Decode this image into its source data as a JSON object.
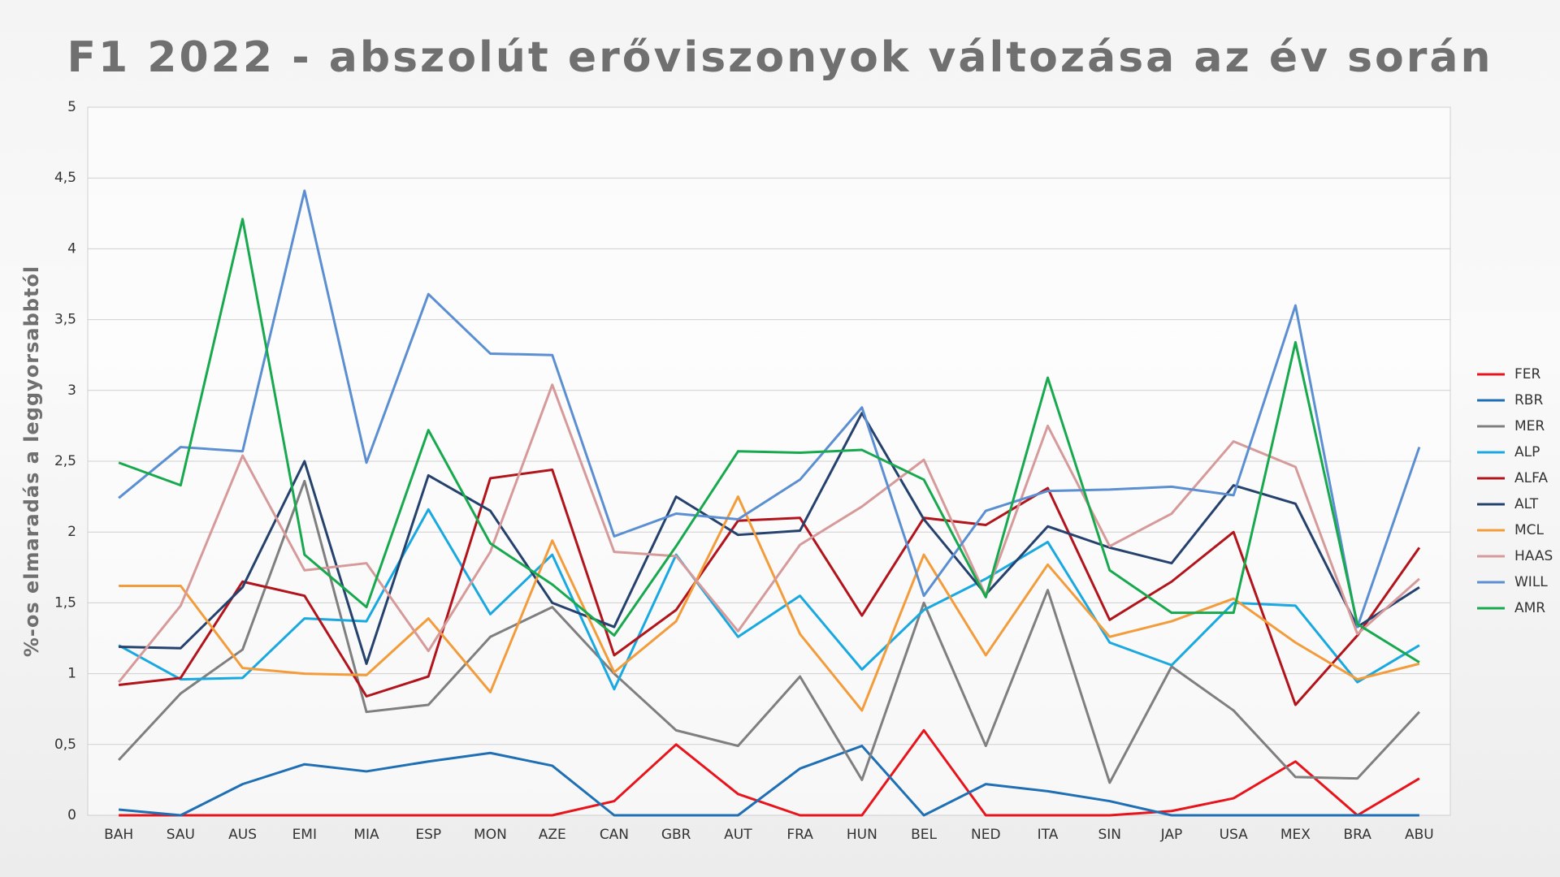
{
  "chart_data": {
    "type": "line",
    "title": "F1 2022 - abszolút  erőviszonyok  változása az év  során",
    "y_label": "%-os  elmaradás a leggyorsabbtól",
    "categories": [
      "BAH",
      "SAU",
      "AUS",
      "EMI",
      "MIA",
      "ESP",
      "MON",
      "AZE",
      "CAN",
      "GBR",
      "AUT",
      "FRA",
      "HUN",
      "BEL",
      "NED",
      "ITA",
      "SIN",
      "JAP",
      "USA",
      "MEX",
      "BRA",
      "ABU"
    ],
    "ylim": [
      0,
      5
    ],
    "yticks": [
      0,
      {
        "value": 0.5,
        "label": "0,5"
      },
      1,
      {
        "value": 1.5,
        "label": "1,5"
      },
      2,
      {
        "value": 2.5,
        "label": "2,5"
      },
      3,
      {
        "value": 3.5,
        "label": "3,5"
      },
      4,
      {
        "value": 4.5,
        "label": "4,5"
      },
      5
    ],
    "grid": true,
    "legend": "right",
    "series": [
      {
        "name": "FER",
        "color": "#e8141b",
        "values": [
          0,
          0,
          0,
          0,
          0,
          0,
          0,
          0,
          0.1,
          0.5,
          0.15,
          0,
          0,
          0.6,
          0,
          0,
          0,
          0.03,
          0.12,
          0.38,
          0,
          0.26
        ]
      },
      {
        "name": "RBR",
        "color": "#1f6fb5",
        "values": [
          0.04,
          0,
          0.22,
          0.36,
          0.31,
          0.38,
          0.44,
          0.35,
          0,
          0,
          0,
          0.33,
          0.49,
          0,
          0.22,
          0.17,
          0.1,
          0,
          0,
          0,
          0,
          0
        ]
      },
      {
        "name": "MER",
        "color": "#7f7f7f",
        "values": [
          0.39,
          0.86,
          1.17,
          2.36,
          0.73,
          0.78,
          1.26,
          1.47,
          1.0,
          0.6,
          0.49,
          0.98,
          0.25,
          1.5,
          0.49,
          1.59,
          0.23,
          1.05,
          0.74,
          0.27,
          0.26,
          0.73
        ]
      },
      {
        "name": "ALP",
        "color": "#19a9e0",
        "values": [
          1.2,
          0.96,
          0.97,
          1.39,
          1.37,
          2.16,
          1.42,
          1.84,
          0.89,
          1.84,
          1.26,
          1.55,
          1.03,
          1.45,
          1.67,
          1.93,
          1.22,
          1.06,
          1.5,
          1.48,
          0.94,
          1.2
        ]
      },
      {
        "name": "ALFA",
        "color": "#b2141c",
        "values": [
          0.92,
          0.97,
          1.65,
          1.55,
          0.84,
          0.98,
          2.38,
          2.44,
          1.13,
          1.45,
          2.08,
          2.1,
          1.41,
          2.1,
          2.05,
          2.31,
          1.38,
          1.65,
          2.0,
          0.78,
          1.27,
          1.89
        ]
      },
      {
        "name": "ALT",
        "color": "#25416e",
        "values": [
          1.19,
          1.18,
          1.61,
          2.5,
          1.07,
          2.4,
          2.15,
          1.5,
          1.33,
          2.25,
          1.98,
          2.01,
          2.84,
          2.09,
          1.56,
          2.04,
          1.89,
          1.78,
          2.33,
          2.2,
          1.33,
          1.61
        ]
      },
      {
        "name": "MCL",
        "color": "#f39c3c",
        "values": [
          1.62,
          1.62,
          1.04,
          1.0,
          0.99,
          1.39,
          0.87,
          1.94,
          1.01,
          1.37,
          2.25,
          1.28,
          0.74,
          1.84,
          1.13,
          1.77,
          1.26,
          1.37,
          1.53,
          1.22,
          0.96,
          1.07
        ]
      },
      {
        "name": "HAAS",
        "color": "#d69a9a",
        "values": [
          0.94,
          1.48,
          2.54,
          1.73,
          1.78,
          1.16,
          1.86,
          3.04,
          1.86,
          1.83,
          1.3,
          1.91,
          2.18,
          2.51,
          1.55,
          2.75,
          1.9,
          2.13,
          2.64,
          2.46,
          1.28,
          1.67
        ]
      },
      {
        "name": "WILL",
        "color": "#5b8fd1",
        "values": [
          2.24,
          2.6,
          2.57,
          4.41,
          2.49,
          3.68,
          3.26,
          3.25,
          1.97,
          2.13,
          2.09,
          2.37,
          2.88,
          1.55,
          2.15,
          2.29,
          2.3,
          2.32,
          2.26,
          3.6,
          1.33,
          2.6
        ]
      },
      {
        "name": "AMR",
        "color": "#18a94f",
        "values": [
          2.49,
          2.33,
          4.21,
          1.84,
          1.47,
          2.72,
          1.92,
          1.63,
          1.27,
          1.9,
          2.57,
          2.56,
          2.58,
          2.37,
          1.54,
          3.09,
          1.73,
          1.43,
          1.43,
          3.34,
          1.35,
          1.08
        ]
      }
    ]
  }
}
